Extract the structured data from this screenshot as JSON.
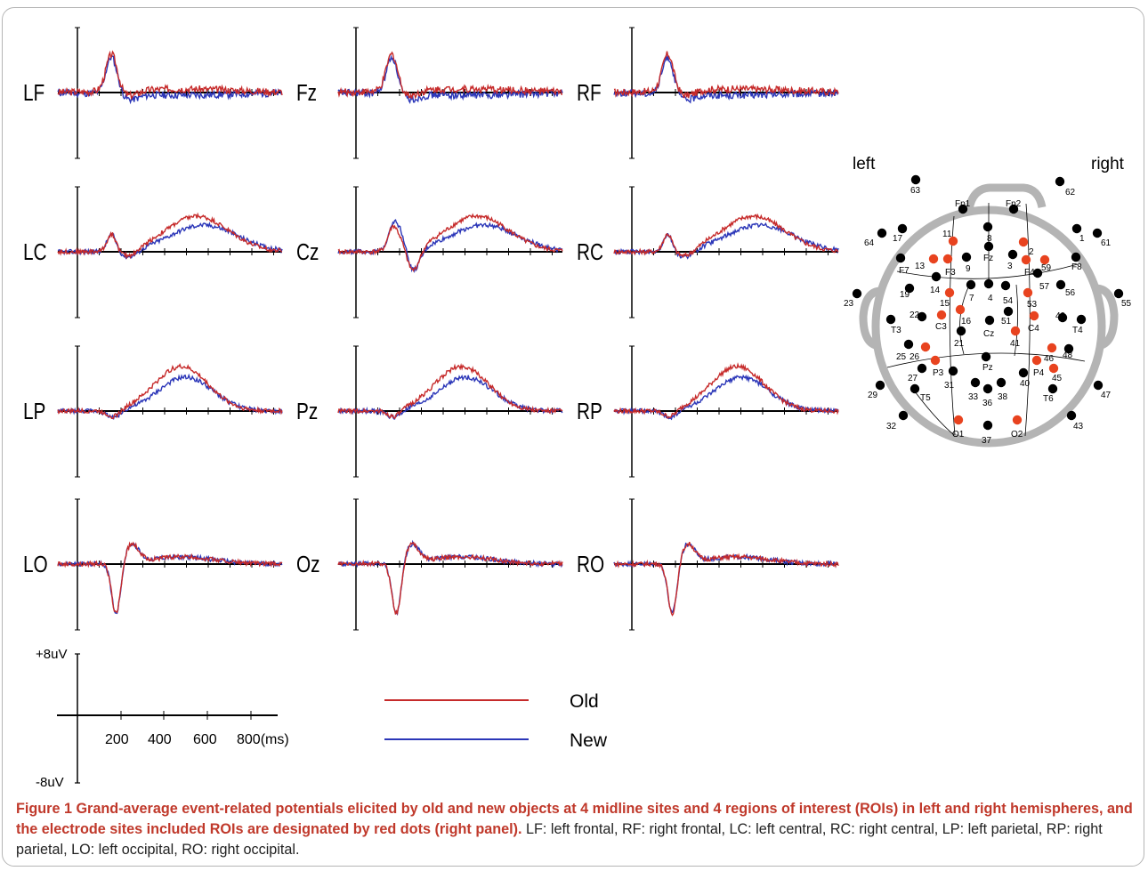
{
  "figure": {
    "panels": [
      {
        "id": "lf",
        "label": "LF"
      },
      {
        "id": "fz",
        "label": "Fz"
      },
      {
        "id": "rf",
        "label": "RF"
      },
      {
        "id": "lc",
        "label": "LC"
      },
      {
        "id": "cz",
        "label": "Cz"
      },
      {
        "id": "rc",
        "label": "RC"
      },
      {
        "id": "lp",
        "label": "LP"
      },
      {
        "id": "pz",
        "label": "Pz"
      },
      {
        "id": "rp",
        "label": "RP"
      },
      {
        "id": "lo",
        "label": "LO"
      },
      {
        "id": "oz",
        "label": "Oz"
      },
      {
        "id": "ro",
        "label": "RO"
      }
    ],
    "scale": {
      "y_top": "+8uV",
      "y_bottom": "-8uV",
      "x_ticks": [
        "200",
        "400",
        "600",
        "800(ms)"
      ]
    },
    "legend": [
      {
        "name": "Old",
        "color": "#c62a2a"
      },
      {
        "name": "New",
        "color": "#2b36b8"
      }
    ],
    "head_map": {
      "left_label": "left",
      "right_label": "right",
      "electrodes": [
        {
          "label": "63",
          "roi": false
        },
        {
          "label": "62",
          "roi": false
        },
        {
          "label": "64",
          "roi": false
        },
        {
          "label": "17",
          "roi": false
        },
        {
          "label": "1",
          "roi": false
        },
        {
          "label": "61",
          "roi": false
        },
        {
          "label": "Fp1",
          "roi": false
        },
        {
          "label": "Fp2",
          "roi": false
        },
        {
          "label": "11",
          "roi": true
        },
        {
          "label": "8",
          "roi": false
        },
        {
          "label": "2",
          "roi": true
        },
        {
          "label": "F7",
          "roi": false
        },
        {
          "label": "13",
          "roi": true
        },
        {
          "label": "F3",
          "roi": true
        },
        {
          "label": "9",
          "roi": false
        },
        {
          "label": "Fz",
          "roi": false
        },
        {
          "label": "3",
          "roi": false
        },
        {
          "label": "F4",
          "roi": true
        },
        {
          "label": "59",
          "roi": true
        },
        {
          "label": "F8",
          "roi": false
        },
        {
          "label": "19",
          "roi": false
        },
        {
          "label": "14",
          "roi": false
        },
        {
          "label": "57",
          "roi": false
        },
        {
          "label": "56",
          "roi": false
        },
        {
          "label": "23",
          "roi": false
        },
        {
          "label": "55",
          "roi": false
        },
        {
          "label": "15",
          "roi": true
        },
        {
          "label": "7",
          "roi": false
        },
        {
          "label": "4",
          "roi": false
        },
        {
          "label": "54",
          "roi": false
        },
        {
          "label": "53",
          "roi": true
        },
        {
          "label": "22",
          "roi": false
        },
        {
          "label": "C3",
          "roi": true
        },
        {
          "label": "16",
          "roi": true
        },
        {
          "label": "51",
          "roi": false
        },
        {
          "label": "C4",
          "roi": true
        },
        {
          "label": "49",
          "roi": false
        },
        {
          "label": "T3",
          "roi": false
        },
        {
          "label": "Cz",
          "roi": false
        },
        {
          "label": "T4",
          "roi": false
        },
        {
          "label": "21",
          "roi": false
        },
        {
          "label": "41",
          "roi": true
        },
        {
          "label": "25",
          "roi": false
        },
        {
          "label": "26",
          "roi": true
        },
        {
          "label": "46",
          "roi": true
        },
        {
          "label": "48",
          "roi": false
        },
        {
          "label": "Pz",
          "roi": false
        },
        {
          "label": "27",
          "roi": false
        },
        {
          "label": "P3",
          "roi": true
        },
        {
          "label": "P4",
          "roi": true
        },
        {
          "label": "45",
          "roi": true
        },
        {
          "label": "31",
          "roi": false
        },
        {
          "label": "40",
          "roi": false
        },
        {
          "label": "29",
          "roi": false
        },
        {
          "label": "T5",
          "roi": false
        },
        {
          "label": "33",
          "roi": false
        },
        {
          "label": "38",
          "roi": false
        },
        {
          "label": "36",
          "roi": false
        },
        {
          "label": "T6",
          "roi": false
        },
        {
          "label": "47",
          "roi": false
        },
        {
          "label": "32",
          "roi": false
        },
        {
          "label": "43",
          "roi": false
        },
        {
          "label": "O1",
          "roi": true
        },
        {
          "label": "37",
          "roi": false
        },
        {
          "label": "O2",
          "roi": true
        }
      ]
    }
  },
  "caption": {
    "title": "Figure 1 Grand-average event-related potentials elicited by old and new objects at 4 midline sites and 4 regions of interest (ROIs) in left and right hemispheres, and the electrode sites included ROIs are designated by red dots (right panel).",
    "body": " LF: left frontal, RF: right frontal, LC: left central, RC: right central, LP: left parietal, RP: right parietal, LO: left occipital, RO: right occipital."
  },
  "colors": {
    "old": "#c62a2a",
    "new": "#2b36b8",
    "roi_dot": "#e8431f",
    "dot": "#000000",
    "head_outline": "#b4b4b4"
  }
}
